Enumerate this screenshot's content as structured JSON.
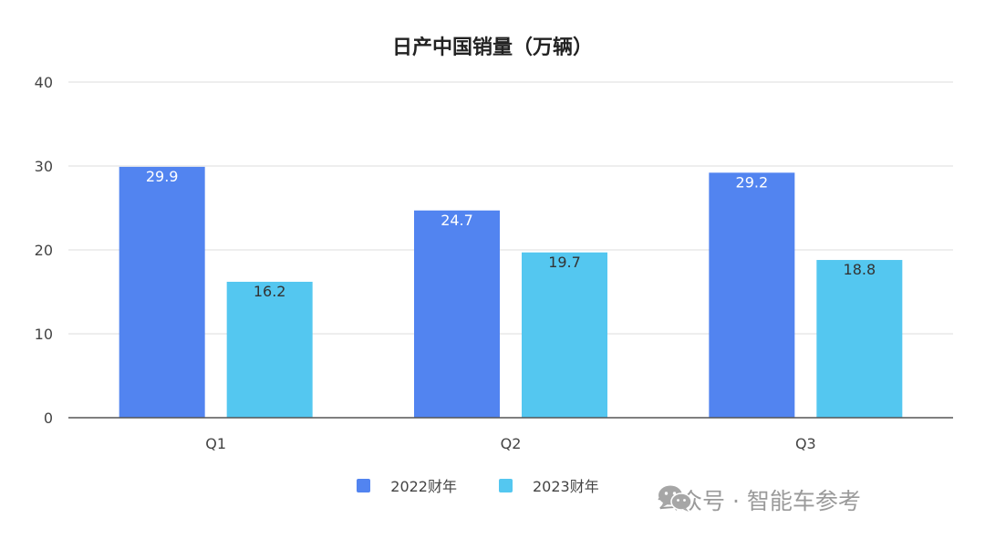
{
  "chart_data": {
    "type": "bar",
    "title": "日产中国销量（万辆）",
    "categories": [
      "Q1",
      "Q2",
      "Q3"
    ],
    "series": [
      {
        "name": "2022财年",
        "values": [
          29.9,
          24.7,
          29.2
        ],
        "color": "#5284F0"
      },
      {
        "name": "2023财年",
        "values": [
          16.2,
          19.7,
          18.8
        ],
        "color": "#54C7F0"
      }
    ],
    "ylim": [
      0,
      40
    ],
    "yticks": [
      0,
      10,
      20,
      30,
      40
    ],
    "grid": true,
    "legend_position": "bottom",
    "data_labels": [
      "29.9",
      "16.2",
      "24.7",
      "19.7",
      "29.2",
      "18.8"
    ]
  },
  "watermark": {
    "icon": "wechat-icon",
    "text": "公众号 · 智能车参考"
  }
}
